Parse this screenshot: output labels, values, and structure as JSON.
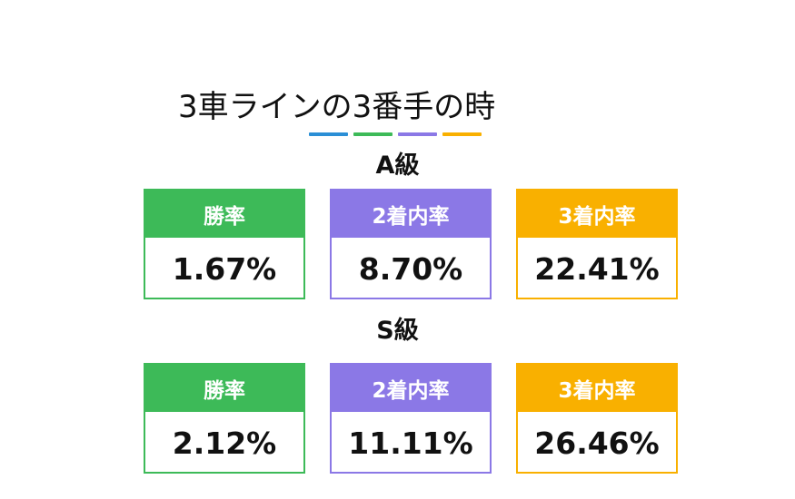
{
  "title": "3車ラインの3番手の時",
  "underline_colors": [
    "#2b8fd6",
    "#3dba58",
    "#8b78e6",
    "#f9b000"
  ],
  "colors": {
    "win": "#3dba58",
    "top2": "#8b78e6",
    "top3": "#f9b000"
  },
  "groups": [
    {
      "label": "A級",
      "cards": [
        {
          "label": "勝率",
          "value": "1.67%"
        },
        {
          "label": "2着内率",
          "value": "8.70%"
        },
        {
          "label": "3着内率",
          "value": "22.41%"
        }
      ]
    },
    {
      "label": "S級",
      "cards": [
        {
          "label": "勝率",
          "value": "2.12%"
        },
        {
          "label": "2着内率",
          "value": "11.11%"
        },
        {
          "label": "3着内率",
          "value": "26.46%"
        }
      ]
    }
  ]
}
